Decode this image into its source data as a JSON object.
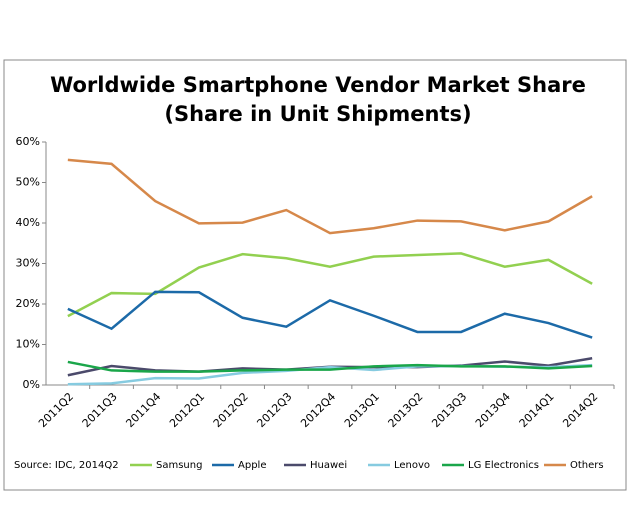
{
  "chart_data": {
    "type": "line",
    "title": "Worldwide Smartphone Vendor Market Share",
    "subtitle": "(Share in Unit Shipments)",
    "source": "Source: IDC, 2014Q2",
    "categories": [
      "2011Q2",
      "2011Q3",
      "2011Q4",
      "2012Q1",
      "2012Q2",
      "2012Q3",
      "2012Q4",
      "2013Q1",
      "2013Q2",
      "2013Q3",
      "2013Q4",
      "2014Q1",
      "2014Q2"
    ],
    "series": [
      {
        "name": "Samsung",
        "color": "#92d050",
        "values": [
          17.0,
          22.7,
          22.5,
          29.0,
          32.3,
          31.3,
          29.2,
          31.7,
          32.1,
          32.5,
          29.2,
          30.9,
          25.0
        ]
      },
      {
        "name": "Apple",
        "color": "#1c6aa8",
        "values": [
          18.8,
          13.9,
          23.0,
          22.9,
          16.6,
          14.4,
          20.9,
          17.1,
          13.1,
          13.1,
          17.6,
          15.3,
          11.7
        ]
      },
      {
        "name": "Huawei",
        "color": "#4b4a6b",
        "values": [
          2.4,
          4.7,
          3.6,
          3.3,
          4.1,
          3.8,
          4.5,
          4.4,
          4.4,
          4.8,
          5.8,
          4.8,
          6.6
        ]
      },
      {
        "name": "Lenovo",
        "color": "#86cbe0",
        "values": [
          0.2,
          0.4,
          1.7,
          1.6,
          3.0,
          3.5,
          4.4,
          3.7,
          4.6,
          4.7,
          4.5,
          4.4,
          4.9
        ]
      },
      {
        "name": "LG Electronics",
        "color": "#1aa64a",
        "values": [
          5.7,
          3.6,
          3.3,
          3.3,
          3.6,
          3.8,
          3.8,
          4.6,
          4.9,
          4.6,
          4.6,
          4.1,
          4.7
        ]
      },
      {
        "name": "Others",
        "color": "#d6884a",
        "values": [
          55.6,
          54.6,
          45.4,
          39.9,
          40.1,
          43.2,
          37.5,
          38.7,
          40.6,
          40.4,
          38.2,
          40.4,
          46.6
        ]
      }
    ],
    "ylim": [
      0,
      60
    ],
    "yticks": [
      {
        "value": 0,
        "label": "0%"
      },
      {
        "value": 10,
        "label": "10%"
      },
      {
        "value": 20,
        "label": "20%"
      },
      {
        "value": 30,
        "label": "30%"
      },
      {
        "value": 40,
        "label": "40%"
      },
      {
        "value": 50,
        "label": "50%"
      },
      {
        "value": 60,
        "label": "60%"
      }
    ],
    "grid": false,
    "legend": "bottom"
  }
}
